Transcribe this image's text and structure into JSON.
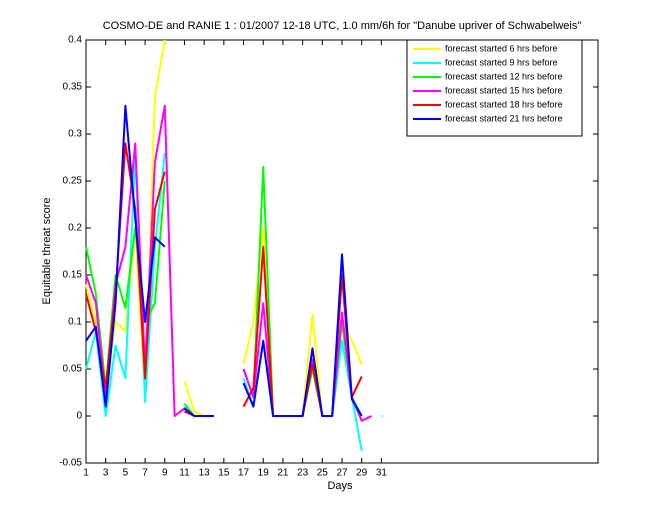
{
  "chart_data": {
    "type": "line",
    "title": "COSMO-DE and RANIE 1 : 01/2007 12-18 UTC, 1.0 mm/6h for \"Danube upriver of Schwabelweis\"",
    "x_label": "Days",
    "y_label": "Equitable threat score",
    "x": [
      1,
      2,
      3,
      4,
      5,
      6,
      7,
      8,
      9,
      10,
      11,
      12,
      13,
      14,
      15,
      16,
      17,
      18,
      19,
      20,
      21,
      22,
      23,
      24,
      25,
      26,
      27,
      28,
      29,
      30,
      31
    ],
    "xlim": [
      1,
      53
    ],
    "xticks": [
      1,
      3,
      5,
      7,
      9,
      11,
      13,
      15,
      17,
      19,
      21,
      23,
      25,
      27,
      29,
      31
    ],
    "ylim": [
      -0.05,
      0.4
    ],
    "yticks": [
      -0.05,
      0,
      0.05,
      0.1,
      0.15,
      0.2,
      0.25,
      0.3,
      0.35,
      0.4
    ],
    "legend_position": "upper right",
    "series": [
      {
        "name": "forecast started 6 hrs before",
        "color": "#ffff00",
        "values": [
          0.14,
          0.1,
          0.03,
          0.1,
          0.09,
          0.2,
          0.02,
          0.34,
          0.4,
          null,
          0.037,
          0.005,
          0,
          0,
          null,
          null,
          0.055,
          0.1,
          0.2,
          0,
          0,
          0,
          0,
          0.108,
          0,
          0,
          0.1,
          0.08,
          0.055,
          null,
          null
        ]
      },
      {
        "name": "forecast started 9 hrs before",
        "color": "#00ffff",
        "values": [
          0.05,
          0.09,
          0,
          0.075,
          0.04,
          0.28,
          0.015,
          0.18,
          0.28,
          null,
          0.01,
          0,
          0,
          0,
          null,
          null,
          0.04,
          0.01,
          0.08,
          0,
          0,
          0,
          0,
          0.06,
          0,
          0,
          0.08,
          0.02,
          -0.037,
          null,
          0
        ]
      },
      {
        "name": "forecast started 12 hrs before",
        "color": "#00ff00",
        "values": [
          0.18,
          0.13,
          0.03,
          0.15,
          0.115,
          0.2,
          0.1,
          0.12,
          0.25,
          null,
          0.013,
          0,
          0,
          0,
          null,
          null,
          0.05,
          0.02,
          0.265,
          0,
          0,
          0,
          0,
          0.05,
          0,
          0,
          0.1,
          0.02,
          0,
          null,
          null
        ]
      },
      {
        "name": "forecast started 15 hrs before",
        "color": "#ff00ff",
        "values": [
          0.15,
          0.12,
          0.02,
          0.14,
          0.18,
          0.29,
          0.05,
          0.27,
          0.33,
          0,
          0.008,
          0,
          0,
          0,
          null,
          null,
          0.05,
          0.02,
          0.12,
          0,
          0,
          0,
          0,
          0.06,
          0,
          0,
          0.11,
          0.02,
          -0.005,
          0,
          null
        ]
      },
      {
        "name": "forecast started 18 hrs before",
        "color": "#ff0000",
        "values": [
          0.13,
          0.09,
          0.03,
          0.13,
          0.29,
          0.22,
          0.04,
          0.22,
          0.26,
          null,
          0.005,
          0,
          0,
          0,
          null,
          null,
          0.01,
          0.03,
          0.18,
          0,
          0,
          0,
          0,
          0.055,
          0,
          0,
          0.15,
          0.02,
          0.042,
          null,
          null
        ]
      },
      {
        "name": "forecast started 21 hrs before",
        "color": "#0000ff",
        "values": [
          0.08,
          0.095,
          0.01,
          0.12,
          0.33,
          0.21,
          0.1,
          0.19,
          0.18,
          null,
          0.008,
          0,
          0,
          0,
          null,
          null,
          0.035,
          0.01,
          0.08,
          0,
          0,
          0,
          0,
          0.072,
          0,
          0,
          0.172,
          0.018,
          0,
          null,
          null
        ]
      }
    ]
  }
}
